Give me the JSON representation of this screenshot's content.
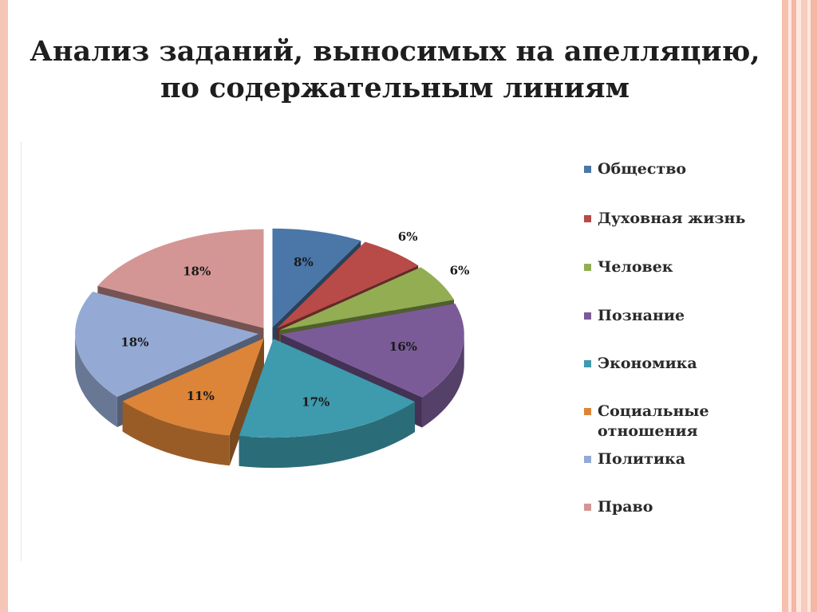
{
  "title_lines": [
    "Анализ заданий, выносимых на апелляцию,",
    "по содержательным линиям"
  ],
  "chart_data": {
    "type": "pie",
    "title": "Анализ заданий, выносимых на апелляцию, по содержательным линиям",
    "legend_position": "right",
    "categories": [
      "Общество",
      "Духовная жизнь",
      "Человек",
      "Познание",
      "Экономика",
      "Социальные отношения",
      "Политика",
      "Право"
    ],
    "values": [
      8,
      6,
      6,
      16,
      17,
      11,
      18,
      18
    ],
    "labels": [
      "8%",
      "6%",
      "6%",
      "16%",
      "17%",
      "11%",
      "18%",
      "18%"
    ],
    "colors": [
      "#4a76a8",
      "#b84a47",
      "#92ad52",
      "#7a5b98",
      "#3e9aad",
      "#dc8438",
      "#94aad4",
      "#d49695"
    ],
    "legend_labels": [
      "Общество",
      "Духовная жизнь",
      "Человек",
      "Познание",
      "Экономика",
      "Социальные\nотношения",
      "Политика",
      "Право"
    ]
  }
}
